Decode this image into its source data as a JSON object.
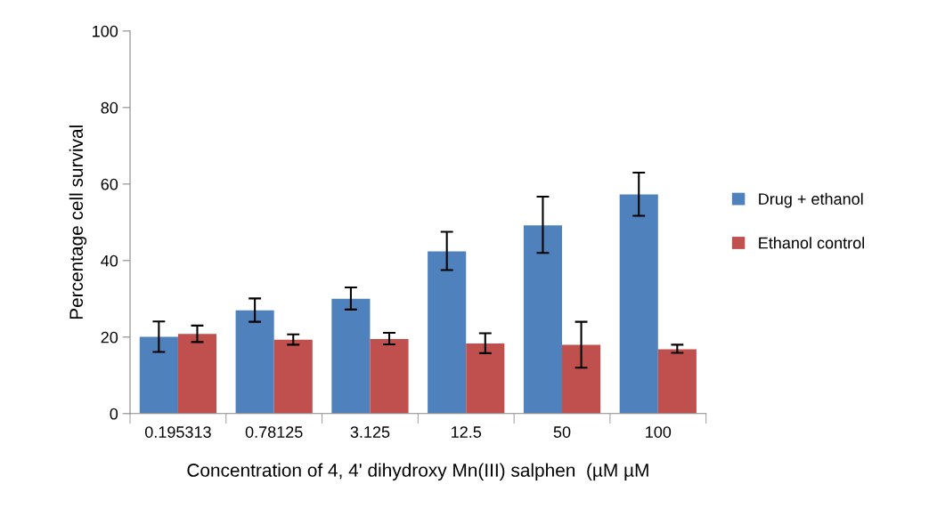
{
  "chart_data": {
    "type": "bar",
    "xlabel": "Concentration of 4, 4' dihydroxy Mn(III) salphen  (µM µM",
    "ylabel": "Percentage cell survival",
    "categories": [
      "0.195313",
      "0.78125",
      "3.125",
      "12.5",
      "50",
      "100"
    ],
    "series": [
      {
        "name": "Drug + ethanol",
        "color": "#4f81bd",
        "values": [
          20.1,
          27.0,
          30.0,
          42.4,
          49.2,
          57.3
        ],
        "errors": [
          [
            16.1,
            24.1
          ],
          [
            24.0,
            30.1
          ],
          [
            27.2,
            33.0
          ],
          [
            37.5,
            47.5
          ],
          [
            42.0,
            56.7
          ],
          [
            51.7,
            63.0
          ]
        ]
      },
      {
        "name": "Ethanol control",
        "color": "#c0504d",
        "values": [
          20.8,
          19.3,
          19.5,
          18.3,
          18.0,
          16.8
        ],
        "errors": [
          [
            18.7,
            23.0
          ],
          [
            18.0,
            20.7
          ],
          [
            18.1,
            21.1
          ],
          [
            15.8,
            21.0
          ],
          [
            12.0,
            24.0
          ],
          [
            15.9,
            18.0
          ]
        ]
      }
    ],
    "ylim": [
      0,
      100
    ],
    "yticks": [
      0,
      20,
      40,
      60,
      80,
      100
    ],
    "grid": false,
    "legend": "right"
  }
}
